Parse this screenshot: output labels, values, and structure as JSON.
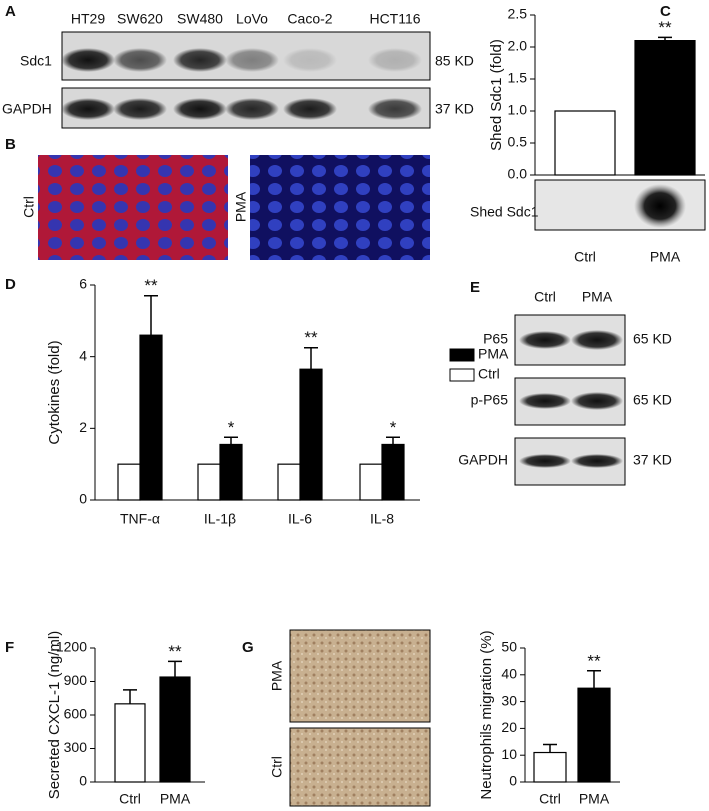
{
  "panel_labels": [
    "A",
    "B",
    "C",
    "D",
    "E",
    "F",
    "G"
  ],
  "blot_a": {
    "lanes": [
      "HT29",
      "SW620",
      "SW480",
      "LoVo",
      "Caco-2",
      "HCT116"
    ],
    "rows": [
      "Sdc1",
      "GAPDH"
    ],
    "sizes": [
      "85 KD",
      "37 KD"
    ]
  },
  "micro_b": {
    "labels": [
      "Ctrl",
      "PMA"
    ]
  },
  "dot_c": {
    "label": "Shed Sdc1"
  },
  "blot_e": {
    "lanes": [
      "Ctrl",
      "PMA"
    ],
    "rows": [
      "P65",
      "p-P65",
      "GAPDH"
    ],
    "sizes": [
      "65 KD",
      "65 KD",
      "37 KD"
    ]
  },
  "micro_g": {
    "labels": [
      "PMA",
      "Ctrl"
    ]
  },
  "chart_data": [
    {
      "type": "bar",
      "ylabel": "Shed Sdc1 (fold)",
      "categories": [
        "Ctrl",
        "PMA"
      ],
      "values": [
        1,
        2.1
      ],
      "errors": [
        0,
        0.05
      ],
      "colors": [
        "#ffffff",
        "#000000"
      ],
      "ylim": [
        0,
        2.5
      ],
      "yticks": [
        {
          "value": 0,
          "label": "0.0"
        },
        {
          "value": 0.5,
          "label": "0.5"
        },
        {
          "value": 1,
          "label": "1.0"
        },
        {
          "value": 1.5,
          "label": "1.5"
        },
        {
          "value": 2,
          "label": "2.0"
        },
        {
          "value": 2.5,
          "label": "2.5"
        }
      ],
      "annotations": [
        {
          "text": "**",
          "category": "PMA"
        }
      ]
    },
    {
      "type": "bar",
      "ylabel": "Cytokines (fold)",
      "categories": [
        "TNF-α",
        "IL-1β",
        "IL-6",
        "IL-8"
      ],
      "series": [
        {
          "name": "PMA",
          "color": "#000000",
          "values": [
            4.6,
            1.55,
            3.65,
            1.55
          ],
          "errors": [
            1.1,
            0.2,
            0.6,
            0.2
          ]
        },
        {
          "name": "Ctrl",
          "color": "#ffffff",
          "values": [
            1,
            1,
            1,
            1
          ]
        }
      ],
      "ylim": [
        0,
        6
      ],
      "yticks": [
        0,
        2,
        4,
        6
      ],
      "annotations": [
        {
          "text": "**",
          "category": "TNF-α"
        },
        {
          "text": "*",
          "category": "IL-1β"
        },
        {
          "text": "**",
          "category": "IL-6"
        },
        {
          "text": "*",
          "category": "IL-8"
        }
      ]
    },
    {
      "type": "bar",
      "ylabel": "Secreted CXCL-1 (ng/ml)",
      "categories": [
        "Ctrl",
        "PMA"
      ],
      "values": [
        700,
        940
      ],
      "errors": [
        125,
        140
      ],
      "colors": [
        "#ffffff",
        "#000000"
      ],
      "ylim": [
        0,
        1200
      ],
      "yticks": [
        0,
        300,
        600,
        900,
        1200
      ],
      "annotations": [
        {
          "text": "**",
          "category": "PMA"
        }
      ]
    },
    {
      "type": "bar",
      "ylabel": "Neutrophils migration (%)",
      "categories": [
        "Ctrl",
        "PMA"
      ],
      "values": [
        11,
        35
      ],
      "errors": [
        3,
        6.5
      ],
      "colors": [
        "#ffffff",
        "#000000"
      ],
      "ylim": [
        0,
        50
      ],
      "yticks": [
        0,
        10,
        20,
        30,
        40,
        50
      ],
      "annotations": [
        {
          "text": "**",
          "category": "PMA"
        }
      ]
    }
  ]
}
